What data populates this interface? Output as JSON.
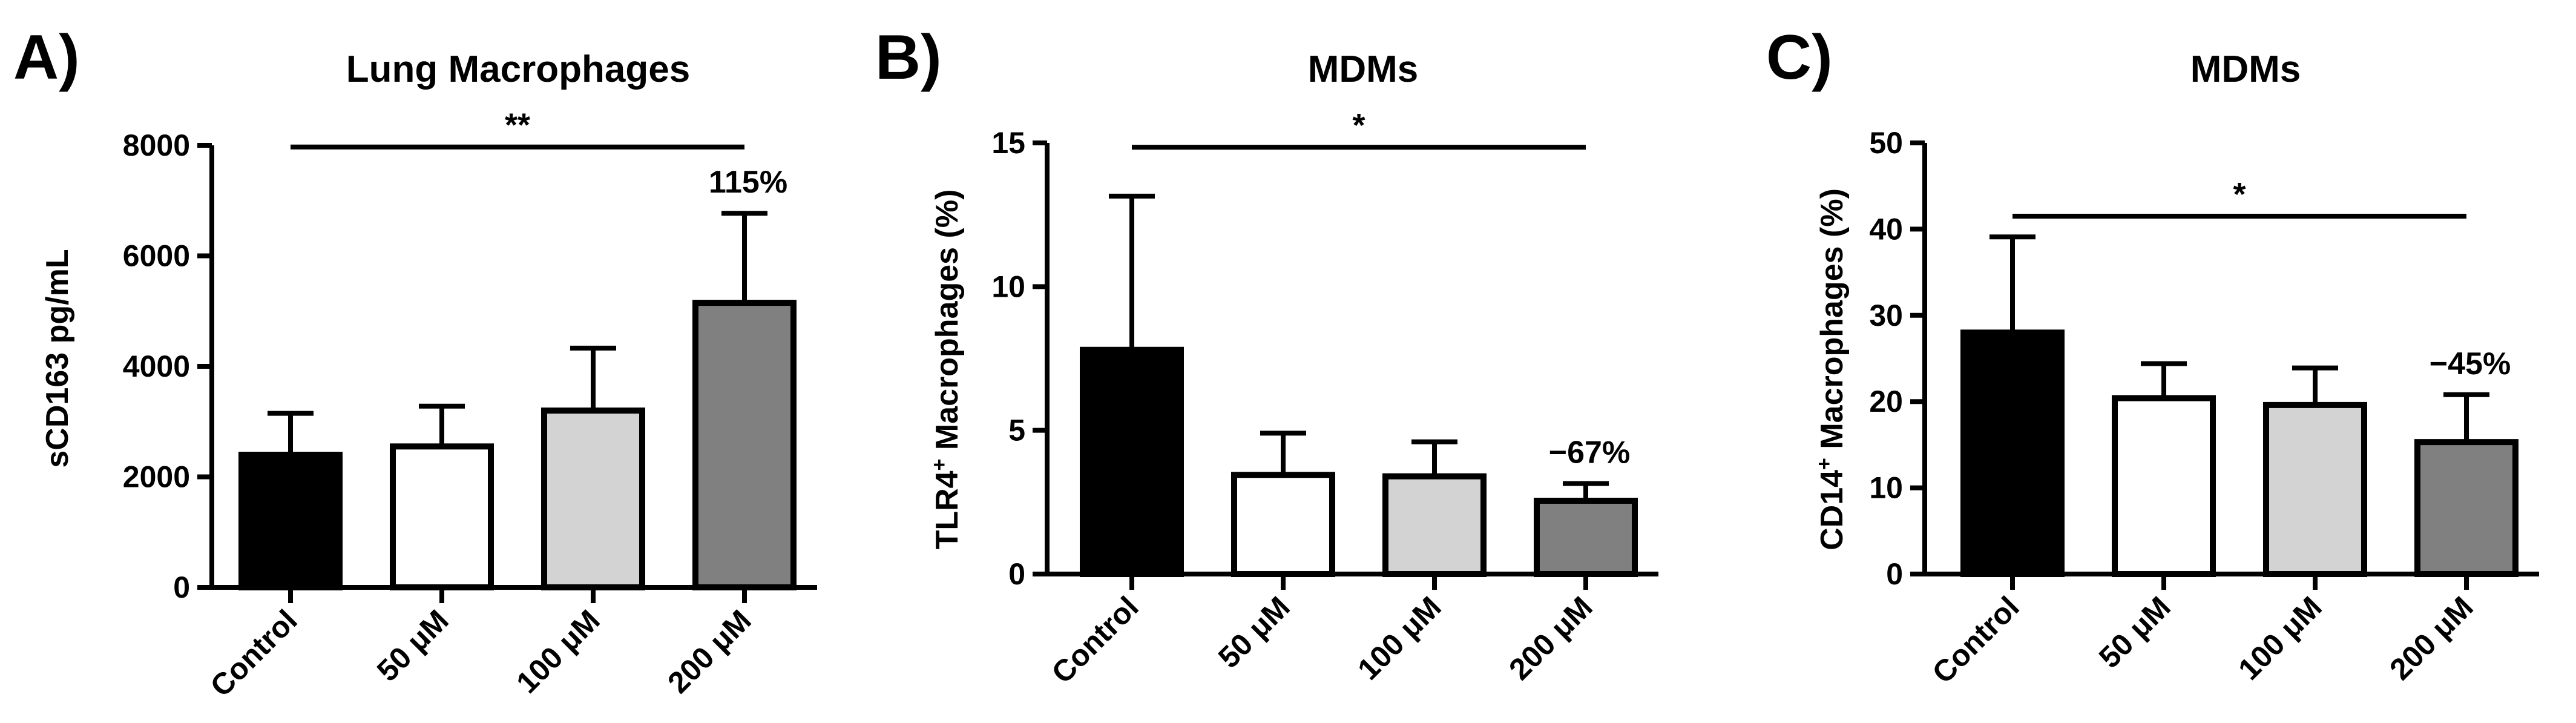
{
  "chart_data": [
    {
      "type": "bar",
      "panel": "A)",
      "title": "Lung Macrophages",
      "ylabel": "sCD163 pg/mL",
      "ylim": [
        0,
        8000
      ],
      "yticks": [
        0,
        2000,
        4000,
        6000,
        8000
      ],
      "categories": [
        "Control",
        "50 μM",
        "100 μM",
        "200 μM"
      ],
      "values": [
        2400,
        2550,
        3200,
        5150
      ],
      "errors": [
        750,
        730,
        1130,
        1620
      ],
      "bar_colors": [
        "#000000",
        "#ffffff",
        "#d3d3d3",
        "#808080"
      ],
      "significance": {
        "label": "**",
        "from": "Control",
        "to": "200 μM",
        "y": 7970
      },
      "annotation": {
        "text": "115%",
        "category": "200 μM"
      }
    },
    {
      "type": "bar",
      "panel": "B)",
      "title": "MDMs",
      "ylabel_main": "TLR4",
      "ylabel_sup": "+",
      "ylabel_rest": " Macrophages (%)",
      "ylim": [
        0,
        15
      ],
      "yticks": [
        0,
        5,
        10,
        15
      ],
      "categories": [
        "Control",
        "50 μM",
        "100 μM",
        "200 μM"
      ],
      "values": [
        7.8,
        3.45,
        3.4,
        2.55
      ],
      "errors": [
        5.35,
        1.45,
        1.2,
        0.6
      ],
      "bar_colors": [
        "#000000",
        "#ffffff",
        "#d3d3d3",
        "#808080"
      ],
      "significance": {
        "label": "*",
        "from": "Control",
        "to": "200 μM",
        "y": 14.85
      },
      "annotation": {
        "text": "−67%",
        "category": "200 μM"
      }
    },
    {
      "type": "bar",
      "panel": "C)",
      "title": "MDMs",
      "ylabel_main": "CD14",
      "ylabel_sup": "+",
      "ylabel_rest": " Macrophages (%)",
      "ylim": [
        0,
        50
      ],
      "yticks": [
        0,
        10,
        20,
        30,
        40,
        50
      ],
      "categories": [
        "Control",
        "50 μM",
        "100 μM",
        "200 μM"
      ],
      "values": [
        28.0,
        20.4,
        19.6,
        15.3
      ],
      "errors": [
        11.1,
        4.0,
        4.3,
        5.5
      ],
      "bar_colors": [
        "#000000",
        "#ffffff",
        "#d3d3d3",
        "#808080"
      ],
      "significance": {
        "label": "*",
        "from": "Control",
        "to": "200 μM",
        "y": 41.5
      },
      "annotation": {
        "text": "−45%",
        "category": "200 μM"
      }
    }
  ]
}
